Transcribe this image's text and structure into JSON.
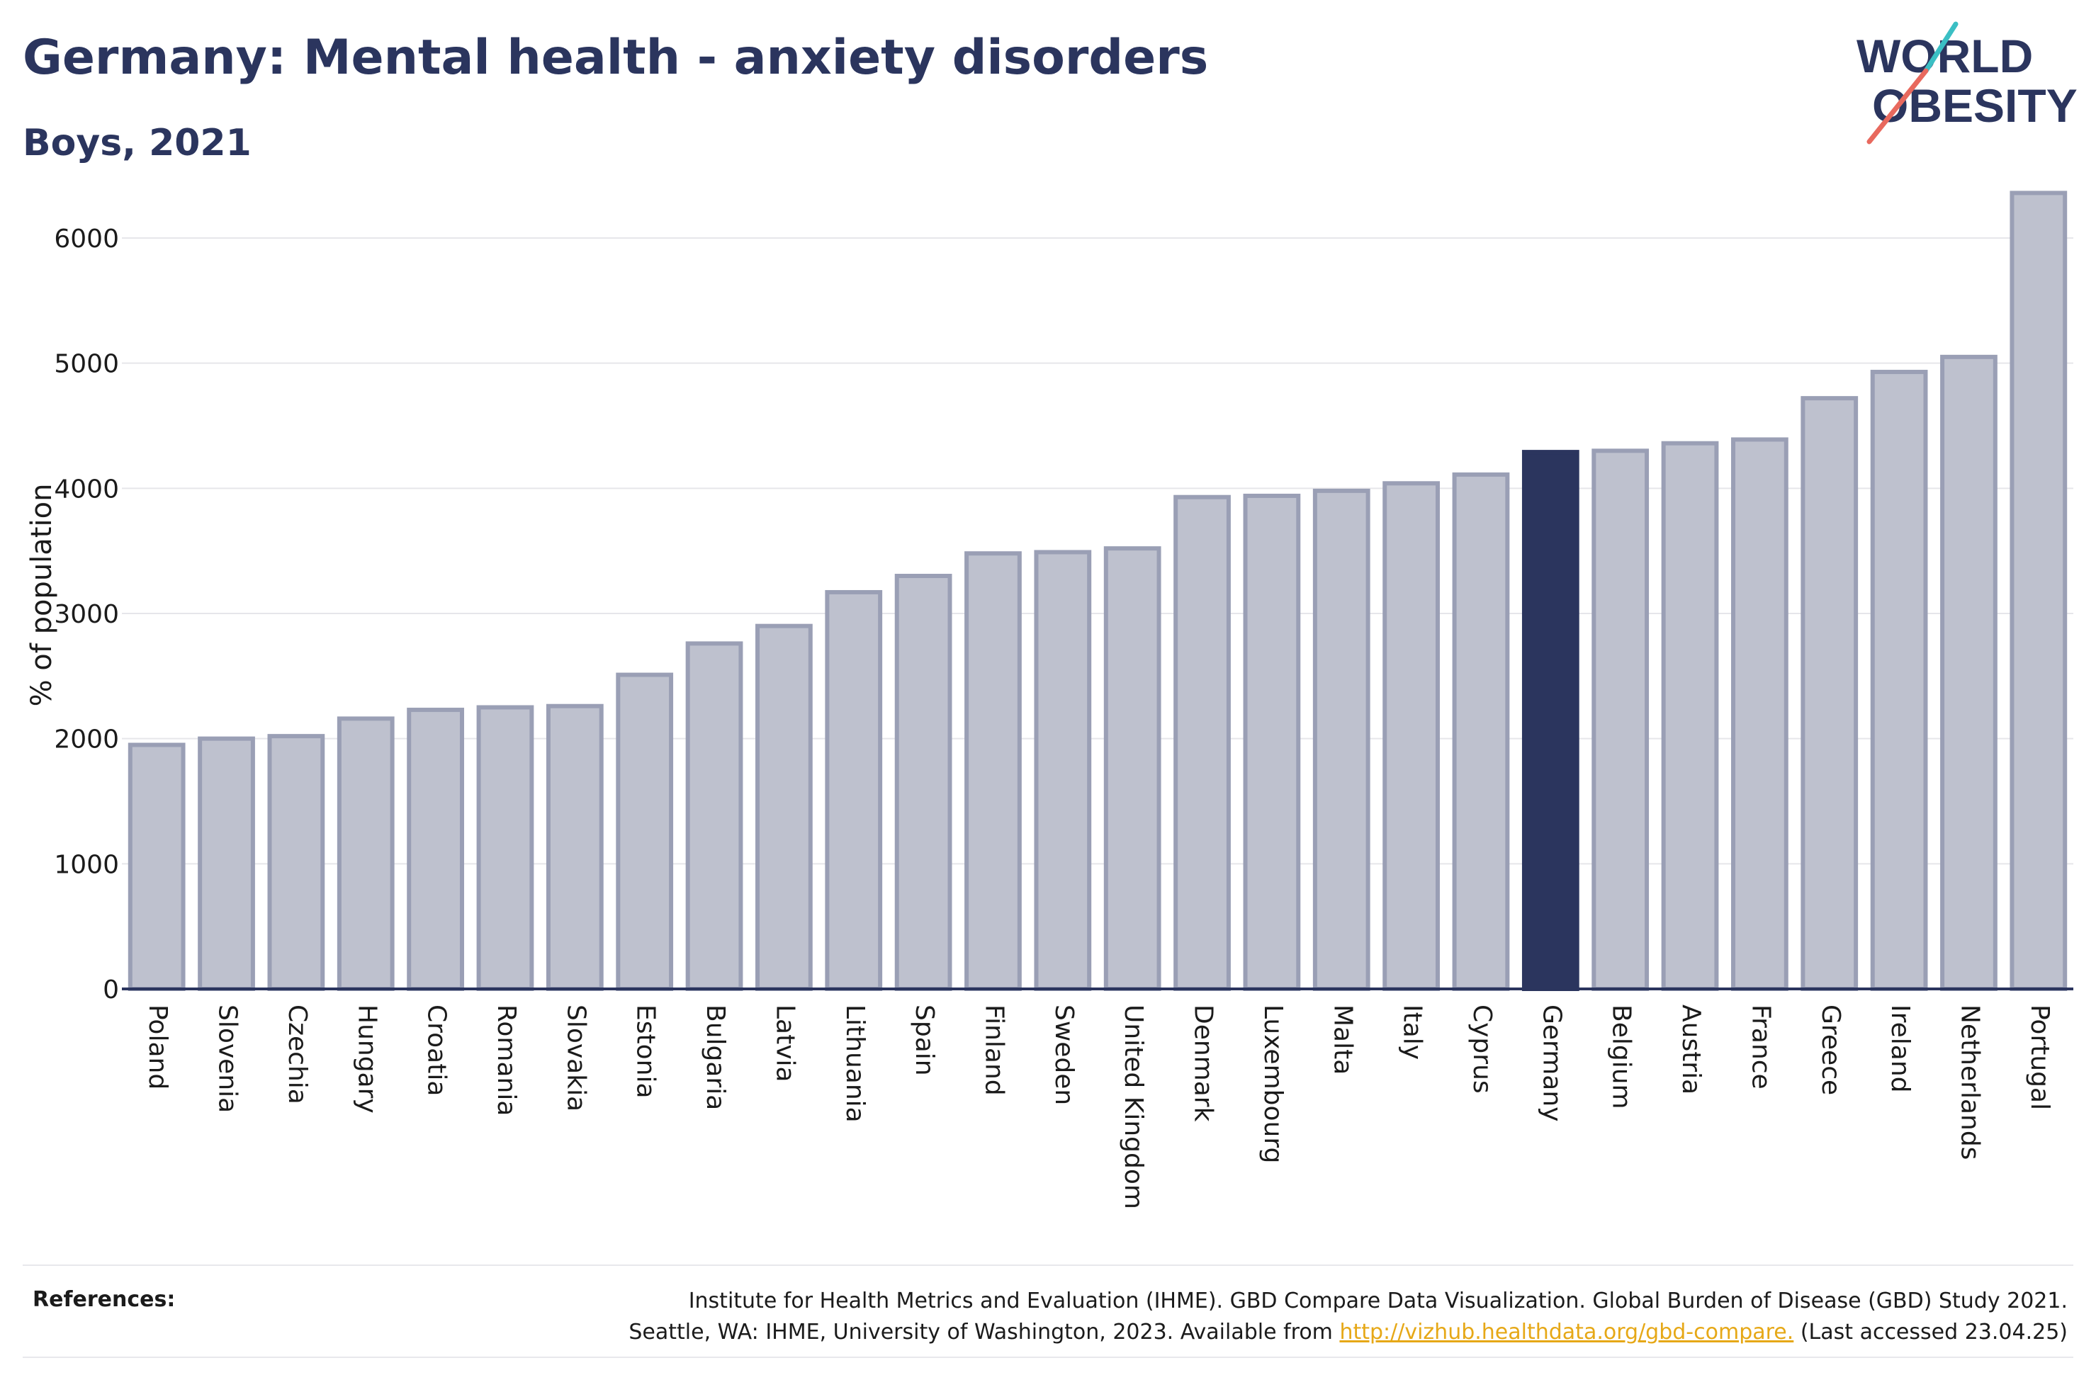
{
  "header": {
    "title": "Germany: Mental health - anxiety disorders",
    "subtitle": "Boys, 2021"
  },
  "logo": {
    "line1": "WORLD",
    "line2": "OBESITY",
    "colors": {
      "text": "#2b355e",
      "teal": "#3bbfc4",
      "coral": "#e8695e"
    }
  },
  "colors": {
    "bar_fill": "#bec1ce",
    "bar_stroke": "#9a9fb5",
    "highlight_fill": "#2b355e",
    "grid": "#e6e6ea",
    "axis": "#2b355e"
  },
  "chart_data": {
    "type": "bar",
    "title": "Germany: Mental health - anxiety disorders",
    "subtitle": "Boys, 2021",
    "xlabel": "",
    "ylabel": "% of population",
    "ylim": [
      0,
      6600
    ],
    "yticks": [
      0,
      1000,
      2000,
      3000,
      4000,
      5000,
      6000
    ],
    "grid": true,
    "highlight": "Germany",
    "categories": [
      "Poland",
      "Slovenia",
      "Czechia",
      "Hungary",
      "Croatia",
      "Romania",
      "Slovakia",
      "Estonia",
      "Bulgaria",
      "Latvia",
      "Lithuania",
      "Spain",
      "Finland",
      "Sweden",
      "United Kingdom",
      "Denmark",
      "Luxembourg",
      "Malta",
      "Italy",
      "Cyprus",
      "Germany",
      "Belgium",
      "Austria",
      "France",
      "Greece",
      "Ireland",
      "Netherlands",
      "Portugal"
    ],
    "values": [
      1950,
      2000,
      2020,
      2160,
      2230,
      2250,
      2260,
      2510,
      2760,
      2900,
      3170,
      3300,
      3480,
      3490,
      3520,
      3930,
      3940,
      3980,
      4040,
      4110,
      4290,
      4300,
      4360,
      4390,
      4720,
      4930,
      5050,
      6360
    ]
  },
  "references": {
    "label": "References:",
    "line1": "Institute for Health Metrics and Evaluation (IHME). GBD Compare Data Visualization. Global Burden of Disease (GBD) Study 2021.",
    "line2_prefix": "Seattle, WA: IHME, University of Washington, 2023. Available from ",
    "link": "http://vizhub.healthdata.org/gbd-compare.",
    "line2_suffix": " (Last accessed 23.04.25)"
  }
}
